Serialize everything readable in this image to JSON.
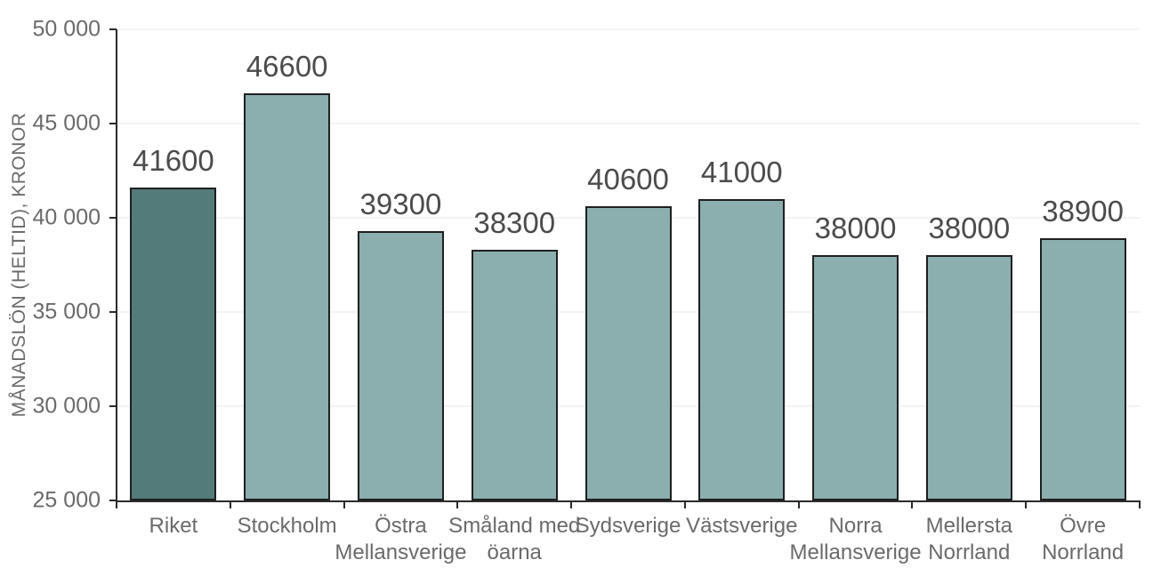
{
  "colors": {
    "bar_default": "#8aafae",
    "bar_highlight": "#527b7a",
    "bar_border": "#1f1f1f",
    "grid": "#f3f3f3",
    "axis": "#2a2a2a",
    "tick_text": "#6a6a6a",
    "value_text": "#4b4b4b"
  },
  "chart_data": {
    "type": "bar",
    "title": "",
    "xlabel": "",
    "ylabel": "MÅNADSLÖN (HELTID), KRONOR",
    "categories": [
      "Riket",
      "Stockholm",
      "Östra Mellansverige",
      "Småland med öarna",
      "Sydsverige",
      "Västsverige",
      "Norra Mellansverige",
      "Mellersta Norrland",
      "Övre Norrland"
    ],
    "category_lines": [
      [
        "Riket"
      ],
      [
        "Stockholm"
      ],
      [
        "Östra",
        "Mellansverige"
      ],
      [
        "Småland med",
        "öarna"
      ],
      [
        "Sydsverige"
      ],
      [
        "Västsverige"
      ],
      [
        "Norra",
        "Mellansverige"
      ],
      [
        "Mellersta",
        "Norrland"
      ],
      [
        "Övre",
        "Norrland"
      ]
    ],
    "values": [
      41600,
      46600,
      39300,
      38300,
      40600,
      41000,
      38000,
      38000,
      38900
    ],
    "value_labels": [
      "41600",
      "46600",
      "39300",
      "38300",
      "40600",
      "41000",
      "38000",
      "38000",
      "38900"
    ],
    "highlighted_index": 0,
    "ylim": [
      25000,
      50000
    ],
    "ytick_step": 5000,
    "ytick_labels": [
      "25 000",
      "30 000",
      "35 000",
      "40 000",
      "45 000",
      "50 000"
    ],
    "grid": true,
    "legend": false
  }
}
